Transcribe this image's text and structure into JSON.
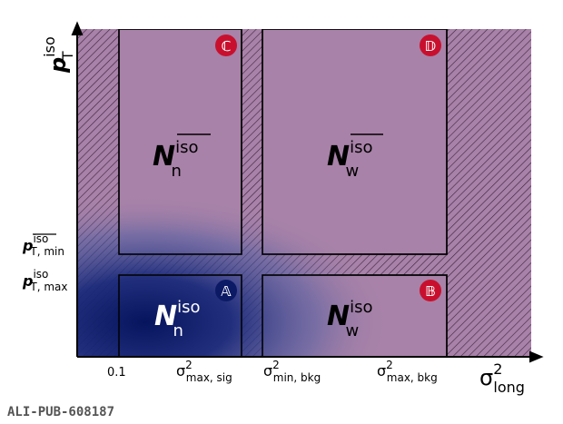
{
  "regions": [
    {
      "badge": "ℂ",
      "main": "N",
      "sup": "iso",
      "sub": "n"
    },
    {
      "badge": "𝔻",
      "main": "N",
      "sup": "iso",
      "sub": "w"
    },
    {
      "badge": "𝔸",
      "main": "N",
      "sup": "iso",
      "sub": "n"
    },
    {
      "badge": "𝔹",
      "main": "N",
      "sup": "iso",
      "sub": "w"
    }
  ],
  "x_ticks": [
    {
      "base": "0.1"
    },
    {
      "base": "σ",
      "sup": "2",
      "sub": "max, sig"
    },
    {
      "base": "σ",
      "sup": "2",
      "sub": "min, bkg"
    },
    {
      "base": "σ",
      "sup": "2",
      "sub": "max, bkg"
    }
  ],
  "x_axis_label": {
    "base": "σ",
    "sup": "2",
    "sub": "long"
  },
  "y_ticks": [
    {
      "base": "p",
      "sup": "iso",
      "sub": "T, min"
    },
    {
      "base": "p",
      "sup": "iso",
      "sub": "T, max"
    }
  ],
  "y_axis_label": {
    "base": "p",
    "sup": "iso",
    "sub": "T"
  },
  "footer": "ALI-PUB-608187"
}
